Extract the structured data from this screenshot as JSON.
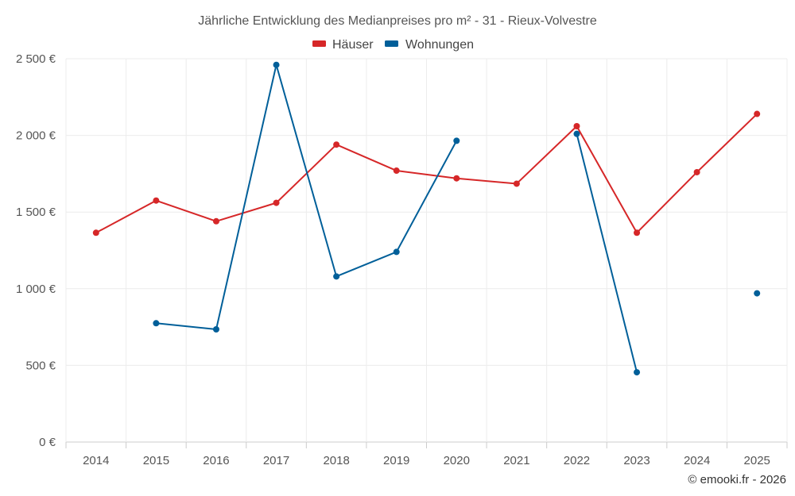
{
  "chart_data": {
    "type": "line",
    "title": "Jährliche Entwicklung des Medianpreises pro m² - 31 - Rieux-Volvestre",
    "categories": [
      "2014",
      "2015",
      "2016",
      "2017",
      "2018",
      "2019",
      "2020",
      "2021",
      "2022",
      "2023",
      "2024",
      "2025"
    ],
    "series": [
      {
        "name": "Häuser",
        "color": "#d62728",
        "values": [
          1365,
          1575,
          1440,
          1560,
          1940,
          1770,
          1720,
          1685,
          2060,
          1365,
          1760,
          2140
        ]
      },
      {
        "name": "Wohnungen",
        "color": "#005f99",
        "values": [
          null,
          775,
          735,
          2460,
          1080,
          1240,
          1965,
          null,
          2010,
          455,
          null,
          970
        ]
      }
    ],
    "y_ticks": [
      0,
      500,
      1000,
      1500,
      2000,
      2500
    ],
    "y_tick_labels": [
      "0 €",
      "500 €",
      "1 000 €",
      "1 500 €",
      "2 000 €",
      "2 500 €"
    ],
    "ylim": [
      0,
      2500
    ],
    "xlabel": "",
    "ylabel": "",
    "grid": true,
    "legend_position": "top-center"
  },
  "credit": "© emooki.fr - 2026"
}
